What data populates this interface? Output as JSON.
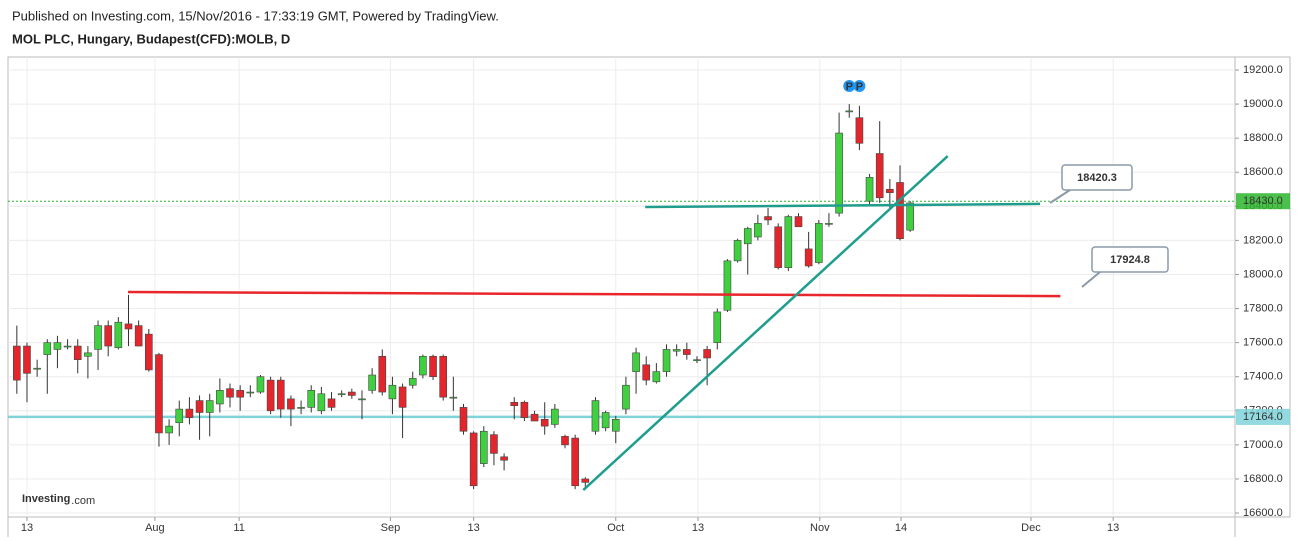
{
  "chart_data": {
    "type": "candlestick",
    "subtitle": "Published on Investing.com, 15/Nov/2016 - 17:33:19 GMT, Powered by TradingView.",
    "title": "MOL PLC, Hungary, Budapest(CFD):MOLB, D",
    "logo": {
      "brand": "Investing",
      "suffix": ".com"
    },
    "up_color": "#3fcf3f",
    "down_color": "#e3262b",
    "grid": true,
    "x": [
      -1,
      0,
      1,
      2,
      3,
      4,
      5,
      6,
      7,
      8,
      9,
      10,
      11,
      12,
      13,
      14,
      15,
      16,
      17,
      18,
      19,
      20,
      21,
      22,
      23,
      24,
      25,
      26,
      27,
      28,
      29,
      30,
      31,
      32,
      33,
      34,
      35,
      36,
      37,
      38,
      39,
      40,
      41,
      42,
      43,
      44,
      45,
      46,
      47,
      48,
      49,
      50,
      51,
      52,
      53,
      54,
      55,
      56,
      57,
      58,
      59,
      60,
      61,
      62,
      63,
      64,
      65,
      66,
      67,
      68,
      69,
      70,
      71,
      72,
      73,
      74,
      75,
      76,
      77,
      78,
      79,
      80,
      81,
      82,
      83,
      84,
      85,
      86,
      87
    ],
    "series": [
      {
        "open": [
          17580,
          17580,
          17450,
          17530,
          17560,
          17580,
          17580,
          17520,
          17560,
          17700,
          17570,
          17710,
          17700,
          17650,
          17530,
          17070,
          17130,
          17210,
          17260,
          17190,
          17240,
          17330,
          17320,
          17310,
          17310,
          17380,
          17380,
          17270,
          17220,
          17220,
          17200,
          17270,
          17300,
          17310,
          17270,
          17320,
          17520,
          17270,
          17340,
          17350,
          17410,
          17520,
          17520,
          17280,
          17220,
          17070,
          16890,
          17060,
          16930,
          17250,
          17250,
          17180,
          17150,
          17120,
          17050,
          17040,
          16800,
          17080,
          17100,
          17080,
          17210,
          17430,
          17470,
          17370,
          17430,
          17550,
          17560,
          17500,
          17560,
          17600,
          17790,
          18080,
          18180,
          18220,
          18340,
          18280,
          18040,
          18340,
          18150,
          18070,
          18300,
          18360,
          18960,
          18920,
          18430,
          18710,
          18500,
          18540,
          18260
        ],
        "high": [
          17700,
          17600,
          17500,
          17620,
          17640,
          17620,
          17620,
          17580,
          17730,
          17730,
          17750,
          17880,
          17730,
          17680,
          17540,
          17150,
          17260,
          17280,
          17290,
          17300,
          17390,
          17360,
          17350,
          17350,
          17410,
          17400,
          17400,
          17290,
          17260,
          17350,
          17340,
          17310,
          17320,
          17330,
          17320,
          17450,
          17560,
          17400,
          17360,
          17430,
          17530,
          17530,
          17530,
          17400,
          17240,
          17080,
          17110,
          17080,
          16950,
          17280,
          17260,
          17200,
          17250,
          17240,
          17060,
          17060,
          16810,
          17280,
          17200,
          17170,
          17400,
          17570,
          17520,
          17480,
          17590,
          17590,
          17600,
          17520,
          17580,
          17800,
          18090,
          18210,
          18280,
          18350,
          18390,
          18300,
          18350,
          18360,
          18250,
          18320,
          18360,
          18950,
          19000,
          18990,
          18590,
          18900,
          18560,
          18640,
          18430
        ],
        "low": [
          17300,
          17250,
          17400,
          17300,
          17450,
          17560,
          17420,
          17390,
          17440,
          17520,
          17560,
          17580,
          17580,
          17430,
          16990,
          17000,
          17050,
          17120,
          17030,
          17050,
          17190,
          17220,
          17200,
          17280,
          17300,
          17180,
          17160,
          17110,
          17180,
          17190,
          17180,
          17200,
          17280,
          17270,
          17150,
          17300,
          17290,
          17180,
          17040,
          17330,
          17390,
          17380,
          17260,
          17200,
          17060,
          16740,
          16870,
          16880,
          16850,
          17150,
          17140,
          17140,
          17060,
          17100,
          16980,
          16740,
          16750,
          17060,
          17080,
          17010,
          17180,
          17300,
          17350,
          17360,
          17400,
          17520,
          17500,
          17480,
          17350,
          17560,
          17780,
          18070,
          18000,
          18200,
          18290,
          18030,
          18020,
          18280,
          18040,
          18060,
          18280,
          18340,
          18920,
          18730,
          18400,
          18420,
          18380,
          18200,
          18250
        ],
        "close": [
          17380,
          17420,
          17450,
          17600,
          17600,
          17580,
          17500,
          17540,
          17700,
          17580,
          17720,
          17680,
          17580,
          17440,
          17070,
          17110,
          17210,
          17160,
          17190,
          17260,
          17320,
          17280,
          17280,
          17310,
          17400,
          17200,
          17210,
          17210,
          17220,
          17320,
          17300,
          17220,
          17300,
          17290,
          17270,
          17410,
          17310,
          17350,
          17220,
          17390,
          17520,
          17400,
          17280,
          17280,
          17080,
          16760,
          17080,
          16950,
          16910,
          17230,
          17160,
          17140,
          17110,
          17210,
          17000,
          16760,
          16780,
          17260,
          17190,
          17150,
          17350,
          17540,
          17380,
          17430,
          17560,
          17560,
          17530,
          17500,
          17510,
          17780,
          18080,
          18200,
          18270,
          18300,
          18320,
          18040,
          18340,
          18280,
          18050,
          18300,
          18300,
          18830,
          18960,
          18770,
          18570,
          18450,
          18480,
          18210,
          18420
        ]
      }
    ],
    "xlim": [
      -1.87,
      119.0
    ],
    "xticks": [
      {
        "value": 0,
        "label": "13"
      },
      {
        "value": 12.6,
        "label": "Aug"
      },
      {
        "value": 20.9,
        "label": "11"
      },
      {
        "value": 35.8,
        "label": "Sep"
      },
      {
        "value": 44.0,
        "label": "13"
      },
      {
        "value": 58.0,
        "label": "Oct"
      },
      {
        "value": 66.1,
        "label": "13"
      },
      {
        "value": 78.1,
        "label": "Nov"
      },
      {
        "value": 86.1,
        "label": "14"
      },
      {
        "value": 98.9,
        "label": "Dec"
      },
      {
        "value": 107.0,
        "label": "13"
      }
    ],
    "ylim": [
      16576.7,
      19276.3
    ],
    "yticks": [
      {
        "value": 16600,
        "label": "16600.0"
      },
      {
        "value": 16800,
        "label": "16800.0"
      },
      {
        "value": 17000,
        "label": "17000.0"
      },
      {
        "value": 17200,
        "label": "17200.0"
      },
      {
        "value": 17400,
        "label": "17400.0"
      },
      {
        "value": 17600,
        "label": "17600.0"
      },
      {
        "value": 17800,
        "label": "17800.0"
      },
      {
        "value": 18000,
        "label": "18000.0"
      },
      {
        "value": 18200,
        "label": "18200.0"
      },
      {
        "value": 18400,
        "label": "18400.0"
      },
      {
        "value": 18600,
        "label": "18600.0"
      },
      {
        "value": 18800,
        "label": "18800.0"
      },
      {
        "value": 19000,
        "label": "19000.0"
      },
      {
        "value": 19200,
        "label": "19200.0"
      }
    ],
    "price_markers": [
      {
        "value": 18430,
        "label": "18430.0",
        "color": "#2bb52b",
        "dash": true
      },
      {
        "value": 17164,
        "label": "17164.0",
        "color": "#7fd3d9",
        "dash": false
      }
    ],
    "trend_lines": [
      {
        "x": [
          9.95,
          101.8
        ],
        "y": [
          17897,
          17873
        ],
        "color": "#e8262b"
      },
      {
        "x": [
          60.9,
          99.8
        ],
        "y": [
          18396,
          18414
        ],
        "color": "#1f9e8e"
      },
      {
        "x": [
          54.8,
          90.7
        ],
        "y": [
          16735,
          18695
        ],
        "color": "#1f9e8e"
      }
    ],
    "callouts": [
      "18420.3",
      "17924.8"
    ],
    "events": [
      {
        "x": 81,
        "label": "P"
      },
      {
        "x": 82,
        "label": "P"
      }
    ]
  }
}
